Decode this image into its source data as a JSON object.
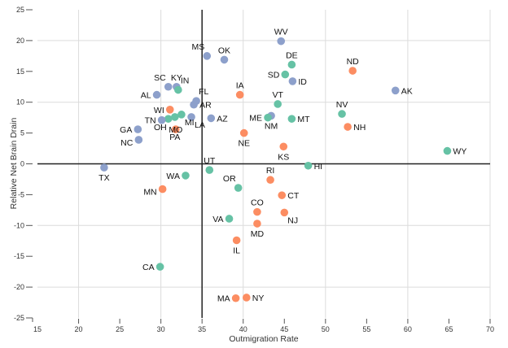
{
  "chart_data": {
    "type": "scatter",
    "title": "",
    "xlabel": "Outmigration Rate",
    "ylabel": "Relative Net Brain Drain",
    "xlim": [
      15,
      70
    ],
    "ylim": [
      -25,
      25
    ],
    "xticks": [
      15,
      20,
      25,
      30,
      35,
      40,
      45,
      50,
      55,
      60,
      65,
      70
    ],
    "yticks": [
      25,
      20,
      15,
      10,
      5,
      0,
      -5,
      -10,
      -15,
      -20,
      -25
    ],
    "x_gridlines": [
      20,
      30,
      40,
      50,
      60,
      70
    ],
    "y_gridlines": [
      20,
      10,
      -10,
      -20
    ],
    "reference_lines": {
      "x": 35,
      "y": 0
    },
    "legend": "none",
    "group_colors": {
      "blue": "#8da0cb",
      "green": "#66c2a5",
      "orange": "#fc8d62"
    },
    "points": [
      {
        "label": "WV",
        "x": 44.6,
        "y": 19.9,
        "group": "blue",
        "pos": "top"
      },
      {
        "label": "MS",
        "x": 35.6,
        "y": 17.5,
        "group": "blue",
        "pos": "top-left"
      },
      {
        "label": "OK",
        "x": 37.7,
        "y": 16.9,
        "group": "blue",
        "pos": "top"
      },
      {
        "label": "DE",
        "x": 45.9,
        "y": 16.1,
        "group": "green",
        "pos": "top"
      },
      {
        "label": "ND",
        "x": 53.3,
        "y": 15.1,
        "group": "orange",
        "pos": "top"
      },
      {
        "label": "SD",
        "x": 45.1,
        "y": 14.5,
        "group": "green",
        "pos": "left"
      },
      {
        "label": "ID",
        "x": 46.0,
        "y": 13.4,
        "group": "blue",
        "pos": "right"
      },
      {
        "label": "SC",
        "x": 30.9,
        "y": 12.5,
        "group": "blue",
        "pos": "top-left"
      },
      {
        "label": "KY",
        "x": 31.9,
        "y": 12.5,
        "group": "blue",
        "pos": "top"
      },
      {
        "label": "IN",
        "x": 32.1,
        "y": 12.0,
        "group": "green",
        "pos": "top-right"
      },
      {
        "label": "AK",
        "x": 58.5,
        "y": 11.9,
        "group": "blue",
        "pos": "right"
      },
      {
        "label": "IA",
        "x": 39.6,
        "y": 11.2,
        "group": "orange",
        "pos": "top"
      },
      {
        "label": "AL",
        "x": 29.5,
        "y": 11.2,
        "group": "blue",
        "pos": "left"
      },
      {
        "label": "FL",
        "x": 34.3,
        "y": 10.2,
        "group": "blue",
        "pos": "top-right"
      },
      {
        "label": "VT",
        "x": 44.2,
        "y": 9.7,
        "group": "green",
        "pos": "top"
      },
      {
        "label": "AR",
        "x": 34.0,
        "y": 9.6,
        "group": "blue",
        "pos": "right"
      },
      {
        "label": "WI",
        "x": 31.1,
        "y": 8.8,
        "group": "orange",
        "pos": "left"
      },
      {
        "label": "NV",
        "x": 52.0,
        "y": 8.1,
        "group": "green",
        "pos": "top"
      },
      {
        "label": "MI",
        "x": 32.5,
        "y": 8.0,
        "group": "green",
        "pos": "bottom-right"
      },
      {
        "label": "NM",
        "x": 43.4,
        "y": 7.8,
        "group": "blue",
        "pos": "bottom"
      },
      {
        "label": "PA",
        "x": 31.7,
        "y": 7.6,
        "group": "green",
        "pos": "bottom-far"
      },
      {
        "label": "LA",
        "x": 33.7,
        "y": 7.6,
        "group": "blue",
        "pos": "bottom-right"
      },
      {
        "label": "ME",
        "x": 43.0,
        "y": 7.5,
        "group": "green",
        "pos": "left"
      },
      {
        "label": "AZ",
        "x": 36.1,
        "y": 7.4,
        "group": "blue",
        "pos": "right"
      },
      {
        "label": "OH",
        "x": 30.9,
        "y": 7.3,
        "group": "green",
        "pos": "bottom-left"
      },
      {
        "label": "MT",
        "x": 45.9,
        "y": 7.3,
        "group": "green",
        "pos": "right"
      },
      {
        "label": "TN",
        "x": 30.1,
        "y": 7.1,
        "group": "blue",
        "pos": "left"
      },
      {
        "label": "NH",
        "x": 52.7,
        "y": 6.0,
        "group": "orange",
        "pos": "right"
      },
      {
        "label": "GA",
        "x": 27.2,
        "y": 5.6,
        "group": "blue",
        "pos": "left"
      },
      {
        "label": "MO",
        "x": 31.8,
        "y": 5.6,
        "group": "orange",
        "pos": "center"
      },
      {
        "label": "NE",
        "x": 40.1,
        "y": 5.0,
        "group": "orange",
        "pos": "bottom"
      },
      {
        "label": "NC",
        "x": 27.3,
        "y": 3.9,
        "group": "blue",
        "pos": "left-low"
      },
      {
        "label": "KS",
        "x": 44.9,
        "y": 2.8,
        "group": "orange",
        "pos": "bottom"
      },
      {
        "label": "WY",
        "x": 64.8,
        "y": 2.1,
        "group": "green",
        "pos": "right"
      },
      {
        "label": "HI",
        "x": 47.9,
        "y": -0.3,
        "group": "green",
        "pos": "right"
      },
      {
        "label": "TX",
        "x": 23.1,
        "y": -0.6,
        "group": "blue",
        "pos": "bottom"
      },
      {
        "label": "UT",
        "x": 35.9,
        "y": -1.0,
        "group": "green",
        "pos": "top"
      },
      {
        "label": "WA",
        "x": 33.0,
        "y": -1.9,
        "group": "green",
        "pos": "left"
      },
      {
        "label": "RI",
        "x": 43.3,
        "y": -2.6,
        "group": "orange",
        "pos": "top"
      },
      {
        "label": "OR",
        "x": 39.4,
        "y": -3.9,
        "group": "green",
        "pos": "top-left"
      },
      {
        "label": "MN",
        "x": 30.2,
        "y": -4.1,
        "group": "orange",
        "pos": "left-low"
      },
      {
        "label": "CT",
        "x": 44.7,
        "y": -5.1,
        "group": "orange",
        "pos": "right"
      },
      {
        "label": "CO",
        "x": 41.7,
        "y": -7.8,
        "group": "orange",
        "pos": "top"
      },
      {
        "label": "NJ",
        "x": 45.0,
        "y": -7.9,
        "group": "orange",
        "pos": "bottom-right"
      },
      {
        "label": "VA",
        "x": 38.3,
        "y": -8.9,
        "group": "green",
        "pos": "left"
      },
      {
        "label": "MD",
        "x": 41.7,
        "y": -9.7,
        "group": "orange",
        "pos": "bottom"
      },
      {
        "label": "IL",
        "x": 39.2,
        "y": -12.4,
        "group": "orange",
        "pos": "bottom"
      },
      {
        "label": "CA",
        "x": 29.9,
        "y": -16.7,
        "group": "green",
        "pos": "left"
      },
      {
        "label": "MA",
        "x": 39.1,
        "y": -21.8,
        "group": "orange",
        "pos": "left"
      },
      {
        "label": "NY",
        "x": 40.4,
        "y": -21.7,
        "group": "orange",
        "pos": "right"
      }
    ]
  }
}
